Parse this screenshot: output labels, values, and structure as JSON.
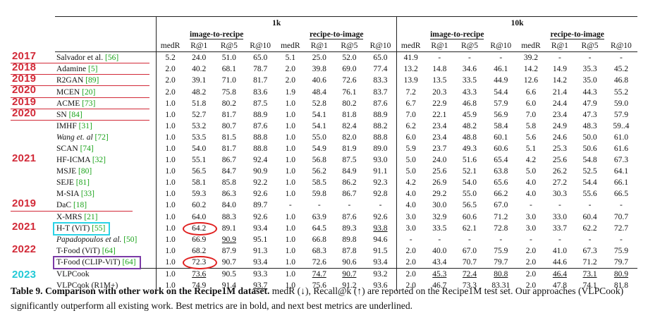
{
  "header": {
    "group_1k": "1k",
    "group_10k": "10k",
    "subgroups": [
      "image-to-recipe",
      "recipe-to-image",
      "image-to-recipe",
      "recipe-to-image"
    ],
    "metrics": [
      "medR",
      "R@1",
      "R@5",
      "R@10",
      "medR",
      "R@1",
      "R@5",
      "R@10",
      "medR",
      "R@1",
      "R@5",
      "R@10",
      "medR",
      "R@1",
      "R@5",
      "R@10"
    ]
  },
  "rows": [
    {
      "m": [
        {
          "t": "Salvador et al. "
        },
        {
          "t": "[56]",
          "ref": true
        }
      ],
      "v": [
        "5.2",
        "24.0",
        "51.0",
        "65.0",
        "5.1",
        "25.0",
        "52.0",
        "65.0",
        "41.9",
        "-",
        "-",
        "-",
        "39.2",
        "-",
        "-",
        "-"
      ]
    },
    {
      "m": [
        {
          "t": "Adamine "
        },
        {
          "t": "[5]",
          "ref": true
        }
      ],
      "v": [
        "2.0",
        "40.2",
        "68.1",
        "78.7",
        "2.0",
        "39.8",
        "69.0",
        "77.4",
        "13.2",
        "14.8",
        "34.6",
        "46.1",
        "14.2",
        "14.9",
        "35.3",
        "45.2"
      ]
    },
    {
      "m": [
        {
          "t": "R2GAN "
        },
        {
          "t": "[89]",
          "ref": true
        }
      ],
      "v": [
        "2.0",
        "39.1",
        "71.0",
        "81.7",
        "2.0",
        "40.6",
        "72.6",
        "83.3",
        "13.9",
        "13.5",
        "33.5",
        "44.9",
        "12.6",
        "14.2",
        "35.0",
        "46.8"
      ]
    },
    {
      "m": [
        {
          "t": "MCEN "
        },
        {
          "t": "[20]",
          "ref": true
        }
      ],
      "v": [
        "2.0",
        "48.2",
        "75.8",
        "83.6",
        "1.9",
        "48.4",
        "76.1",
        "83.7",
        "7.2",
        "20.3",
        "43.3",
        "54.4",
        "6.6",
        "21.4",
        "44.3",
        "55.2"
      ]
    },
    {
      "m": [
        {
          "t": "ACME "
        },
        {
          "t": "[73]",
          "ref": true
        }
      ],
      "v": [
        "1.0",
        "51.8",
        "80.2",
        "87.5",
        "1.0",
        "52.8",
        "80.2",
        "87.6",
        "6.7",
        "22.9",
        "46.8",
        "57.9",
        "6.0",
        "24.4",
        "47.9",
        "59.0"
      ]
    },
    {
      "m": [
        {
          "t": "SN "
        },
        {
          "t": "[84]",
          "ref": true
        }
      ],
      "v": [
        "1.0",
        "52.7",
        "81.7",
        "88.9",
        "1.0",
        "54.1",
        "81.8",
        "88.9",
        "7.0",
        "22.1",
        "45.9",
        "56.9",
        "7.0",
        "23.4",
        "47.3",
        "57.9"
      ]
    },
    {
      "m": [
        {
          "t": "IMHF "
        },
        {
          "t": "[31]",
          "ref": true
        }
      ],
      "v": [
        "1.0",
        "53.2",
        "80.7",
        "87.6",
        "1.0",
        "54.1",
        "82.4",
        "88.2",
        "6.2",
        "23.4",
        "48.2",
        "58.4",
        "5.8",
        "24.9",
        "48.3",
        "59..4"
      ]
    },
    {
      "m": [
        {
          "t": "Wang et. al",
          "it": true
        },
        {
          "t": " "
        },
        {
          "t": "[72]",
          "ref": true
        }
      ],
      "v": [
        "1.0",
        "53.5",
        "81.5",
        "88.8",
        "1.0",
        "55.0",
        "82.0",
        "88.8",
        "6.0",
        "23.4",
        "48.8",
        "60.1",
        "5.6",
        "24.6",
        "50.0",
        "61.0"
      ]
    },
    {
      "m": [
        {
          "t": "SCAN "
        },
        {
          "t": "[74]",
          "ref": true
        }
      ],
      "v": [
        "1.0",
        "54.0",
        "81.7",
        "88.8",
        "1.0",
        "54.9",
        "81.9",
        "89.0",
        "5.9",
        "23.7",
        "49.3",
        "60.6",
        "5.1",
        "25.3",
        "50.6",
        "61.6"
      ]
    },
    {
      "m": [
        {
          "t": "HF-ICMA "
        },
        {
          "t": "[32]",
          "ref": true
        }
      ],
      "v": [
        "1.0",
        "55.1",
        "86.7",
        "92.4",
        "1.0",
        "56.8",
        "87.5",
        "93.0",
        "5.0",
        "24.0",
        "51.6",
        "65.4",
        "4.2",
        "25.6",
        "54.8",
        "67.3"
      ]
    },
    {
      "m": [
        {
          "t": "MSJE "
        },
        {
          "t": "[80]",
          "ref": true
        }
      ],
      "v": [
        "1.0",
        "56.5",
        "84.7",
        "90.9",
        "1.0",
        "56.2",
        "84.9",
        "91.1",
        "5.0",
        "25.6",
        "52.1",
        "63.8",
        "5.0",
        "26.2",
        "52.5",
        "64.1"
      ]
    },
    {
      "m": [
        {
          "t": "SEJE "
        },
        {
          "t": "[81]",
          "ref": true
        }
      ],
      "v": [
        "1.0",
        "58.1",
        "85.8",
        "92.2",
        "1.0",
        "58.5",
        "86.2",
        "92.3",
        "4.2",
        "26.9",
        "54.0",
        "65.6",
        "4.0",
        "27.2",
        "54.4",
        "66.1"
      ]
    },
    {
      "m": [
        {
          "t": "M-SIA "
        },
        {
          "t": "[33]",
          "ref": true
        }
      ],
      "v": [
        "1.0",
        "59.3",
        "86.3",
        "92.6",
        "1.0",
        "59.8",
        "86.7",
        "92.8",
        "4.0",
        "29.2",
        "55.0",
        "66.2",
        "4.0",
        "30.3",
        "55.6",
        "66.5"
      ]
    },
    {
      "m": [
        {
          "t": "DaC "
        },
        {
          "t": "[18]",
          "ref": true
        }
      ],
      "v": [
        "1.0",
        "60.2",
        "84.0",
        "89.7",
        "-",
        "-",
        "-",
        "-",
        "4.0",
        "30.0",
        "56.5",
        "67.0",
        "-",
        "-",
        "-",
        "-"
      ]
    },
    {
      "m": [
        {
          "t": "X-MRS "
        },
        {
          "t": "[21]",
          "ref": true
        }
      ],
      "v": [
        "1.0",
        "64.0",
        "88.3",
        "92.6",
        "1.0",
        "63.9",
        "87.6",
        "92.6",
        "3.0",
        "32.9",
        "60.6",
        "71.2",
        "3.0",
        "33.0",
        "60.4",
        "70.7"
      ]
    },
    {
      "m": [
        {
          "t": "H-T (ViT) "
        },
        {
          "t": "[55]",
          "ref": true
        }
      ],
      "v": [
        "1.0",
        "64.2",
        "89.1",
        "93.4",
        "1.0",
        "64.5",
        "89.3",
        "93.8",
        "3.0",
        "33.5",
        "62.1",
        "72.8",
        "3.0",
        "33.7",
        "62.2",
        "72.7"
      ]
    },
    {
      "m": [
        {
          "t": "Papadopoulos et al.",
          "it": true
        },
        {
          "t": " "
        },
        {
          "t": "[50]",
          "ref": true
        }
      ],
      "v": [
        "1.0",
        "66.9",
        "90.9",
        "95.1",
        "1.0",
        "66.8",
        "89.8",
        "94.6",
        "-",
        "-",
        "-",
        "-",
        "-",
        "-",
        "-",
        "-"
      ]
    },
    {
      "m": [
        {
          "t": "T-Food (ViT) "
        },
        {
          "t": "[64]",
          "ref": true
        }
      ],
      "v": [
        "1.0",
        "68.2",
        "87.9",
        "91.3",
        "1.0",
        "68.3",
        "87.8",
        "91.5",
        "2.0",
        "40.0",
        "67.0",
        "75.9",
        "2.0",
        "41.0",
        "67.3",
        "75.9"
      ]
    },
    {
      "m": [
        {
          "t": "T-Food (CLIP-ViT) "
        },
        {
          "t": "[64]",
          "ref": true
        }
      ],
      "v": [
        "1.0",
        "72.3",
        "90.7",
        "93.4",
        "1.0",
        "72.6",
        "90.6",
        "93.4",
        "2.0",
        "43.4",
        "70.7",
        "79.7",
        "2.0",
        "44.6",
        "71.2",
        "79.7"
      ]
    },
    {
      "m": [
        {
          "t": "VLPCook"
        }
      ],
      "v": [
        "1.0",
        "73.6",
        "90.5",
        "93.3",
        "1.0",
        "74.7",
        "90.7",
        "93.2",
        "2.0",
        "45.3",
        "72.4",
        "80.8",
        "2.0",
        "46.4",
        "73.1",
        "80.9"
      ]
    },
    {
      "m": [
        {
          "t": "VLPCook (R1M+)"
        }
      ],
      "v": [
        "1.0",
        "74.9",
        "91.4",
        "93.7",
        "1.0",
        "75.6",
        "91.2",
        "93.6",
        "2.0",
        "46.7",
        "73.3",
        "83.31",
        "2.0",
        "47.8",
        "74.1",
        "81.8"
      ]
    }
  ],
  "bold_cells": [
    "16-3",
    "16-7",
    "20-1",
    "20-2",
    "20-5",
    "20-6",
    "20-9",
    "20-10",
    "20-11",
    "20-13",
    "20-14",
    "20-15"
  ],
  "underline_cells": [
    "15-7",
    "16-2",
    "19-1",
    "19-5",
    "19-6",
    "19-9",
    "19-10",
    "19-11",
    "19-13",
    "19-14",
    "19-15",
    "20-3"
  ],
  "year_labels": [
    {
      "label": "2017",
      "row": 0
    },
    {
      "label": "2018",
      "row": 1
    },
    {
      "label": "2019",
      "row": 2
    },
    {
      "label": "2020",
      "row": 3
    },
    {
      "label": "2019",
      "row": 4
    },
    {
      "label": "2020",
      "row": 5
    },
    {
      "label": "2021",
      "row": 9
    },
    {
      "label": "2019",
      "row": 13
    },
    {
      "label": "2021",
      "row": 15
    },
    {
      "label": "2022",
      "row": 17
    },
    {
      "label": "2023",
      "row": 19
    }
  ],
  "caption": {
    "title": "Table 9. Comparison with other work on the Recipe1M dataset.",
    "body": " medR (↓), Recall@k (↑) are reported on the Recipe1M test set. Our approaches (VLPCook) significantly outperform all existing work. Best metrics are in bold, and next best metrics are underlined."
  },
  "colors": {
    "year_red": "#d22a38",
    "year_cyan": "#22c9d6",
    "ref_green": "#1aa31a",
    "box_cyan": "#2bd3e6",
    "box_purple": "#7b3aa6",
    "oval_red": "#e02020"
  }
}
